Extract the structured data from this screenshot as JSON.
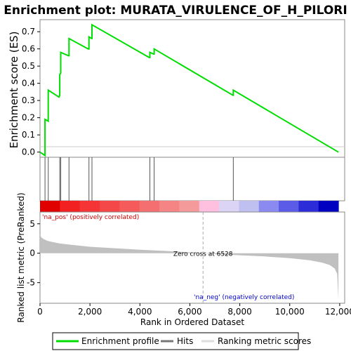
{
  "chart_data": {
    "type": "line",
    "title": "Enrichment plot: MURATA_VIRULENCE_OF_H_PILORI",
    "top_panel": {
      "ylabel": "Enrichment score (ES)",
      "yticks": [
        "0.0",
        "0.1",
        "0.2",
        "0.3",
        "0.4",
        "0.5",
        "0.6",
        "0.7"
      ],
      "ylim": [
        -0.03,
        0.77
      ],
      "series": [
        {
          "name": "Enrichment profile",
          "color": "#00dd00",
          "x": [
            0,
            200,
            200,
            330,
            330,
            760,
            790,
            790,
            830,
            830,
            1140,
            1160,
            1160,
            1930,
            1960,
            1960,
            2070,
            2080,
            2080,
            4370,
            4400,
            4400,
            4550,
            4570,
            4570,
            7730,
            7740,
            7740,
            11950
          ],
          "y": [
            0,
            -0.02,
            0.19,
            0.18,
            0.36,
            0.32,
            0.33,
            0.45,
            0.46,
            0.58,
            0.56,
            0.56,
            0.66,
            0.6,
            0.6,
            0.67,
            0.66,
            0.66,
            0.74,
            0.55,
            0.55,
            0.58,
            0.57,
            0.57,
            0.6,
            0.33,
            0.33,
            0.36,
            0.0
          ]
        }
      ]
    },
    "hits": [
      200,
      330,
      790,
      830,
      1160,
      1960,
      2080,
      4400,
      4570,
      7740
    ],
    "hits_label": "Hits",
    "ranking_bar": {
      "colors": [
        "#e00000",
        "#f22020",
        "#f53535",
        "#f44848",
        "#f55b5b",
        "#f46f6f",
        "#f58585",
        "#f59a9a",
        "#ffc0e0",
        "#dcd4f4",
        "#c0c0f0",
        "#8a8af0",
        "#5b5be8",
        "#2c2cd8",
        "#0000c0"
      ]
    },
    "bottom_panel": {
      "ylabel": "Ranked list metric (PreRanked)",
      "yticks": [
        "-5",
        "0",
        "5"
      ],
      "ylim": [
        -8.5,
        7
      ],
      "pos_label": "'na_pos' (positively correlated)",
      "neg_label": "'na_neg' (negatively correlated)",
      "zero_cross_label": "Zero cross at 6528",
      "zero_cross": 6528,
      "metric_profile": {
        "x": [
          0,
          50,
          150,
          300,
          500,
          800,
          1200,
          2000,
          3000,
          4000,
          5000,
          6000,
          6528,
          7000,
          8000,
          9000,
          10000,
          10800,
          11300,
          11600,
          11800,
          11900,
          11950
        ],
        "y": [
          3.2,
          2.7,
          2.4,
          2.1,
          1.9,
          1.65,
          1.45,
          1.1,
          0.85,
          0.6,
          0.4,
          0.15,
          0.0,
          -0.15,
          -0.35,
          -0.55,
          -0.85,
          -1.2,
          -1.6,
          -2.0,
          -2.6,
          -3.5,
          -7.9
        ]
      },
      "metric_label": "Ranking metric scores"
    },
    "xlabel": "Rank in Ordered Dataset",
    "xticks": [
      "0",
      "2,000",
      "4,000",
      "6,000",
      "8,000",
      "10,000",
      "12,000"
    ],
    "xtick_values": [
      0,
      2000,
      4000,
      6000,
      8000,
      10000,
      12000
    ],
    "xlim": [
      0,
      12200
    ],
    "legend": [
      "Enrichment profile",
      "Hits",
      "Ranking metric scores"
    ]
  }
}
